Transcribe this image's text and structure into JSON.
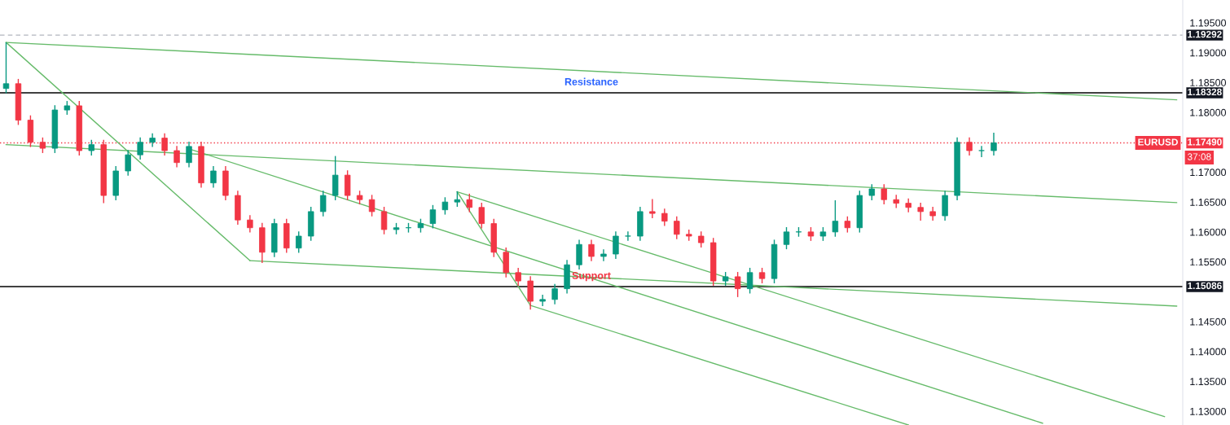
{
  "chart_data": {
    "type": "candlestick",
    "categories": [
      null,
      null,
      null,
      null,
      null,
      null,
      null,
      null,
      null,
      null,
      null,
      null,
      null,
      null,
      null,
      null,
      null,
      null,
      null,
      null,
      null,
      null,
      null,
      null,
      null,
      null,
      null,
      null,
      null,
      null,
      null,
      null,
      null,
      null,
      null,
      null,
      null,
      null,
      null,
      null,
      null,
      null,
      null,
      null,
      null,
      null,
      null,
      null,
      null,
      null,
      null,
      null,
      null,
      null,
      null,
      null,
      null,
      null,
      null,
      null,
      null,
      null,
      null,
      null,
      null,
      null,
      null,
      null,
      null,
      null,
      null,
      null,
      null,
      null,
      null,
      null,
      null,
      null,
      null,
      null,
      null,
      null,
      null,
      null,
      null,
      null,
      null,
      null,
      null,
      null,
      null,
      null,
      null,
      null,
      null,
      null,
      null
    ],
    "ohlc": [
      [
        1.184,
        1.1917,
        1.1832,
        1.1848
      ],
      [
        1.1848,
        1.1856,
        1.1779,
        1.1787
      ],
      [
        1.1787,
        1.1795,
        1.1742,
        1.175
      ],
      [
        1.175,
        1.1758,
        1.1732,
        1.174
      ],
      [
        1.174,
        1.1812,
        1.1732,
        1.1804
      ],
      [
        1.1804,
        1.1819,
        1.1796,
        1.1811
      ],
      [
        1.1811,
        1.1819,
        1.1728,
        1.1736
      ],
      [
        1.1736,
        1.1754,
        1.1728,
        1.1746
      ],
      [
        1.1746,
        1.1754,
        1.1648,
        1.1661
      ],
      [
        1.1661,
        1.171,
        1.1653,
        1.1702
      ],
      [
        1.1702,
        1.1737,
        1.1694,
        1.1729
      ],
      [
        1.1729,
        1.1758,
        1.1721,
        1.175
      ],
      [
        1.175,
        1.1765,
        1.1742,
        1.1757
      ],
      [
        1.1757,
        1.1765,
        1.1728,
        1.1736
      ],
      [
        1.1736,
        1.1744,
        1.1708,
        1.1716
      ],
      [
        1.1716,
        1.1751,
        1.1708,
        1.1743
      ],
      [
        1.1743,
        1.1751,
        1.1674,
        1.1682
      ],
      [
        1.1682,
        1.171,
        1.1674,
        1.1702
      ],
      [
        1.1702,
        1.171,
        1.1653,
        1.1661
      ],
      [
        1.1661,
        1.1669,
        1.1612,
        1.162
      ],
      [
        1.162,
        1.1628,
        1.1599,
        1.1607
      ],
      [
        1.1607,
        1.1615,
        1.1548,
        1.1566
      ],
      [
        1.1566,
        1.1622,
        1.1558,
        1.1614
      ],
      [
        1.1614,
        1.1622,
        1.1565,
        1.1573
      ],
      [
        1.1573,
        1.1601,
        1.1565,
        1.1593
      ],
      [
        1.1593,
        1.1642,
        1.1585,
        1.1634
      ],
      [
        1.1634,
        1.1669,
        1.1626,
        1.1661
      ],
      [
        1.1661,
        1.1727,
        1.1653,
        1.1695
      ],
      [
        1.1695,
        1.1703,
        1.1653,
        1.1661
      ],
      [
        1.1661,
        1.1669,
        1.1646,
        1.1654
      ],
      [
        1.1654,
        1.1662,
        1.1626,
        1.1634
      ],
      [
        1.1634,
        1.1642,
        1.1596,
        1.1604
      ],
      [
        1.1604,
        1.1615,
        1.1596,
        1.1607
      ],
      [
        1.1607,
        1.1615,
        1.1599,
        1.1607
      ],
      [
        1.1607,
        1.1622,
        1.1599,
        1.1614
      ],
      [
        1.1614,
        1.1645,
        1.1606,
        1.1637
      ],
      [
        1.1637,
        1.1658,
        1.1629,
        1.165
      ],
      [
        1.165,
        1.1668,
        1.1642,
        1.1654
      ],
      [
        1.1654,
        1.1664,
        1.1633,
        1.1641
      ],
      [
        1.1641,
        1.1649,
        1.1606,
        1.1614
      ],
      [
        1.1614,
        1.1622,
        1.1558,
        1.1566
      ],
      [
        1.1566,
        1.1574,
        1.1524,
        1.1532
      ],
      [
        1.1532,
        1.154,
        1.151,
        1.1518
      ],
      [
        1.1518,
        1.1526,
        1.147,
        1.1484
      ],
      [
        1.1484,
        1.1495,
        1.1476,
        1.1487
      ],
      [
        1.1487,
        1.1513,
        1.1479,
        1.1505
      ],
      [
        1.1505,
        1.1553,
        1.1497,
        1.1545
      ],
      [
        1.1545,
        1.1587,
        1.1537,
        1.1579
      ],
      [
        1.1579,
        1.1587,
        1.1551,
        1.1559
      ],
      [
        1.1559,
        1.1571,
        1.1551,
        1.1563
      ],
      [
        1.1563,
        1.1601,
        1.1555,
        1.1593
      ],
      [
        1.1593,
        1.1601,
        1.1585,
        1.1593
      ],
      [
        1.1593,
        1.1642,
        1.1585,
        1.1634
      ],
      [
        1.1634,
        1.1655,
        1.1623,
        1.1631
      ],
      [
        1.1631,
        1.1639,
        1.161,
        1.1618
      ],
      [
        1.1618,
        1.1626,
        1.1588,
        1.1596
      ],
      [
        1.1596,
        1.1604,
        1.1585,
        1.1593
      ],
      [
        1.1593,
        1.1601,
        1.1574,
        1.1582
      ],
      [
        1.1582,
        1.159,
        1.151,
        1.1518
      ],
      [
        1.1518,
        1.1533,
        1.151,
        1.1525
      ],
      [
        1.1525,
        1.1533,
        1.1491,
        1.1505
      ],
      [
        1.1505,
        1.154,
        1.1497,
        1.1532
      ],
      [
        1.1532,
        1.154,
        1.1514,
        1.1522
      ],
      [
        1.1522,
        1.1587,
        1.1514,
        1.1579
      ],
      [
        1.1579,
        1.1608,
        1.1571,
        1.16
      ],
      [
        1.16,
        1.1608,
        1.1592,
        1.16
      ],
      [
        1.16,
        1.1608,
        1.1585,
        1.1593
      ],
      [
        1.1593,
        1.1608,
        1.1585,
        1.16
      ],
      [
        1.16,
        1.1653,
        1.1592,
        1.1618
      ],
      [
        1.1618,
        1.1626,
        1.1599,
        1.1607
      ],
      [
        1.1607,
        1.1669,
        1.1599,
        1.1661
      ],
      [
        1.1661,
        1.168,
        1.1653,
        1.1672
      ],
      [
        1.1672,
        1.168,
        1.1646,
        1.1654
      ],
      [
        1.1654,
        1.1662,
        1.164,
        1.1648
      ],
      [
        1.1648,
        1.1656,
        1.1633,
        1.1641
      ],
      [
        1.1641,
        1.1649,
        1.1619,
        1.1634
      ],
      [
        1.1634,
        1.1642,
        1.1619,
        1.1627
      ],
      [
        1.1627,
        1.1669,
        1.1619,
        1.1661
      ],
      [
        1.1661,
        1.1758,
        1.1653,
        1.175
      ],
      [
        1.175,
        1.1758,
        1.1728,
        1.1736
      ],
      [
        1.1736,
        1.1744,
        1.1725,
        1.1736
      ],
      [
        1.1736,
        1.1766,
        1.1728,
        1.1749
      ],
      null,
      null,
      null,
      null,
      null,
      null,
      null,
      null,
      null,
      null,
      null,
      null,
      null,
      null,
      null
    ],
    "colors": [
      "#089981",
      "#f23645",
      "#f23645",
      "#f23645",
      "#089981",
      "#089981",
      "#f23645",
      "#089981",
      "#f23645",
      "#089981",
      "#089981",
      "#089981",
      "#089981",
      "#f23645",
      "#f23645",
      "#089981",
      "#f23645",
      "#089981",
      "#f23645",
      "#f23645",
      "#f23645",
      "#f23645",
      "#089981",
      "#f23645",
      "#089981",
      "#089981",
      "#089981",
      "#089981",
      "#f23645",
      "#f23645",
      "#f23645",
      "#f23645",
      "#089981",
      "#089981",
      "#089981",
      "#089981",
      "#089981",
      "#089981",
      "#f23645",
      "#f23645",
      "#f23645",
      "#f23645",
      "#f23645",
      "#f23645",
      "#089981",
      "#089981",
      "#089981",
      "#089981",
      "#f23645",
      "#089981",
      "#089981",
      "#089981",
      "#089981",
      "#f23645",
      "#f23645",
      "#f23645",
      "#f23645",
      "#f23645",
      "#f23645",
      "#089981",
      "#f23645",
      "#089981",
      "#f23645",
      "#089981",
      "#089981",
      "#089981",
      "#f23645",
      "#089981",
      "#089981",
      "#f23645",
      "#089981",
      "#089981",
      "#f23645",
      "#f23645",
      "#f23645",
      "#f23645",
      "#f23645",
      "#089981",
      "#089981",
      "#f23645",
      "#089981",
      "#089981",
      null,
      null,
      null,
      null,
      null,
      null,
      null,
      null,
      null,
      null,
      null,
      null,
      null,
      null,
      null
    ],
    "series": [
      {
        "type": "line",
        "color": "#66bb6a",
        "values": [
          1.1917,
          null,
          null,
          null,
          null,
          null,
          null,
          null,
          null,
          null,
          null,
          null,
          null,
          null,
          null,
          null,
          null,
          null,
          null,
          null,
          null,
          null,
          null,
          null,
          null,
          null,
          null,
          null,
          null,
          null,
          null,
          null,
          null,
          null,
          null,
          null,
          null,
          null,
          null,
          null,
          null,
          null,
          null,
          null,
          null,
          null,
          null,
          null,
          null,
          null,
          null,
          null,
          null,
          null,
          null,
          null,
          null,
          null,
          null,
          null,
          null,
          null,
          null,
          null,
          null,
          null,
          null,
          null,
          null,
          null,
          null,
          null,
          null,
          null,
          null,
          null,
          null,
          null,
          null,
          null,
          null,
          null,
          null,
          null,
          null,
          null,
          null,
          null,
          null,
          null,
          null,
          null,
          null,
          null,
          null,
          null,
          1.1821
        ]
      },
      {
        "type": "line",
        "color": "#66bb6a",
        "values": [
          1.1917,
          null,
          null,
          null,
          null,
          null,
          null,
          null,
          null,
          null,
          null,
          null,
          null,
          null,
          null,
          null,
          null,
          null,
          null,
          null,
          1.1552,
          null,
          null,
          null,
          null,
          null,
          null,
          null,
          null,
          null,
          null,
          null,
          null,
          null,
          null,
          null,
          null,
          null,
          null,
          null,
          null,
          null,
          null,
          null,
          null,
          null,
          null,
          null,
          null,
          null,
          null,
          null,
          null,
          null,
          null,
          null,
          null,
          null,
          null,
          null,
          null,
          null,
          null,
          null,
          null,
          null,
          null,
          null,
          null,
          null,
          null,
          null,
          null,
          null,
          null,
          null,
          null,
          null,
          null,
          null,
          null,
          null,
          null,
          null,
          null,
          null,
          null,
          null,
          null,
          null,
          null,
          null,
          null,
          null,
          null,
          null,
          null
        ]
      },
      {
        "type": "line",
        "color": "#66bb6a",
        "values": [
          null,
          null,
          null,
          null,
          null,
          null,
          null,
          null,
          null,
          null,
          null,
          null,
          null,
          null,
          null,
          null,
          null,
          null,
          null,
          null,
          1.1552,
          null,
          null,
          null,
          null,
          null,
          null,
          null,
          null,
          null,
          null,
          null,
          null,
          null,
          null,
          null,
          null,
          null,
          null,
          null,
          null,
          null,
          null,
          null,
          null,
          null,
          null,
          null,
          null,
          null,
          null,
          null,
          null,
          null,
          null,
          null,
          null,
          null,
          null,
          null,
          null,
          null,
          null,
          null,
          null,
          null,
          null,
          null,
          null,
          null,
          null,
          null,
          null,
          null,
          null,
          null,
          null,
          null,
          null,
          null,
          null,
          null,
          null,
          null,
          null,
          null,
          null,
          null,
          null,
          null,
          null,
          null,
          null,
          null,
          null,
          null,
          1.1476
        ]
      },
      {
        "type": "line",
        "color": "#66bb6a",
        "values": [
          1.1746,
          null,
          null,
          null,
          null,
          null,
          null,
          null,
          null,
          null,
          null,
          null,
          null,
          null,
          null,
          null,
          null,
          null,
          null,
          null,
          null,
          null,
          null,
          null,
          null,
          null,
          null,
          null,
          null,
          null,
          null,
          null,
          null,
          null,
          null,
          null,
          null,
          null,
          null,
          null,
          null,
          null,
          null,
          null,
          null,
          null,
          null,
          null,
          null,
          null,
          null,
          null,
          null,
          null,
          null,
          null,
          null,
          null,
          null,
          null,
          null,
          null,
          null,
          null,
          null,
          null,
          null,
          null,
          null,
          null,
          null,
          null,
          null,
          null,
          null,
          null,
          null,
          null,
          null,
          null,
          null,
          null,
          null,
          null,
          null,
          null,
          null,
          null,
          null,
          null,
          null,
          null,
          null,
          null,
          null,
          null,
          1.1649
        ]
      },
      {
        "type": "line",
        "color": "#66bb6a",
        "values": [
          null,
          null,
          null,
          null,
          null,
          null,
          null,
          null,
          null,
          null,
          null,
          null,
          null,
          null,
          null,
          1.1739,
          null,
          null,
          null,
          null,
          null,
          null,
          null,
          null,
          null,
          null,
          null,
          null,
          null,
          null,
          null,
          null,
          null,
          null,
          null,
          null,
          null,
          null,
          null,
          null,
          null,
          null,
          null,
          null,
          null,
          null,
          null,
          null,
          null,
          null,
          null,
          null,
          null,
          null,
          null,
          null,
          null,
          null,
          null,
          null,
          null,
          null,
          null,
          null,
          null,
          null,
          null,
          null,
          null,
          null,
          null,
          null,
          null,
          null,
          null,
          null,
          null,
          null,
          null,
          null,
          null,
          null,
          null,
          null,
          null,
          1.128,
          null,
          null,
          null,
          null,
          null,
          null,
          null,
          null,
          null,
          null,
          null
        ]
      },
      {
        "type": "line",
        "color": "#66bb6a",
        "values": [
          null,
          null,
          null,
          null,
          null,
          null,
          null,
          null,
          null,
          null,
          null,
          null,
          null,
          null,
          null,
          null,
          null,
          null,
          null,
          null,
          null,
          null,
          null,
          null,
          null,
          null,
          null,
          null,
          null,
          null,
          null,
          null,
          null,
          null,
          null,
          null,
          null,
          1.1667,
          null,
          null,
          null,
          null,
          null,
          null,
          null,
          null,
          null,
          null,
          null,
          null,
          null,
          null,
          null,
          null,
          null,
          null,
          null,
          null,
          null,
          null,
          null,
          null,
          null,
          null,
          null,
          null,
          null,
          null,
          null,
          null,
          null,
          null,
          null,
          null,
          null,
          null,
          null,
          null,
          null,
          null,
          null,
          null,
          null,
          null,
          null,
          null,
          null,
          null,
          null,
          null,
          null,
          null,
          null,
          null,
          null,
          1.1291,
          null
        ]
      },
      {
        "type": "line",
        "color": "#66bb6a",
        "values": [
          null,
          null,
          null,
          null,
          null,
          null,
          null,
          null,
          null,
          null,
          null,
          null,
          null,
          null,
          null,
          null,
          null,
          null,
          null,
          null,
          null,
          null,
          null,
          null,
          null,
          null,
          null,
          null,
          null,
          null,
          null,
          null,
          null,
          null,
          null,
          null,
          null,
          1.1667,
          null,
          null,
          null,
          null,
          null,
          1.1477,
          null,
          null,
          null,
          null,
          null,
          null,
          null,
          null,
          null,
          null,
          null,
          null,
          null,
          null,
          null,
          null,
          null,
          null,
          null,
          null,
          null,
          null,
          null,
          null,
          null,
          null,
          null,
          null,
          null,
          null,
          null,
          null,
          null,
          null,
          null,
          null,
          null,
          null,
          null,
          null,
          null,
          null,
          null,
          null,
          null,
          null,
          null,
          null,
          null,
          null,
          null,
          null,
          null
        ]
      },
      {
        "type": "line",
        "color": "#66bb6a",
        "values": [
          null,
          null,
          null,
          null,
          null,
          null,
          null,
          null,
          null,
          null,
          null,
          null,
          null,
          null,
          null,
          null,
          null,
          null,
          null,
          null,
          null,
          null,
          null,
          null,
          null,
          null,
          null,
          null,
          null,
          null,
          null,
          null,
          null,
          null,
          null,
          null,
          null,
          null,
          null,
          null,
          null,
          null,
          null,
          1.1477,
          null,
          null,
          null,
          null,
          null,
          null,
          null,
          null,
          null,
          null,
          null,
          null,
          null,
          null,
          null,
          null,
          null,
          null,
          null,
          null,
          null,
          null,
          null,
          null,
          null,
          null,
          null,
          null,
          null,
          null,
          1.1277,
          null,
          null,
          null,
          null,
          null,
          null,
          null,
          null,
          null,
          null,
          null,
          null,
          null,
          null,
          null,
          null,
          null,
          null,
          null,
          null,
          null,
          null
        ]
      }
    ],
    "ylim": [
      1.1277,
      1.1988
    ],
    "yticks": [
      {
        "value": 1.13,
        "label": "1.13000"
      },
      {
        "value": 1.135,
        "label": "1.13500"
      },
      {
        "value": 1.14,
        "label": "1.14000"
      },
      {
        "value": 1.145,
        "label": "1.14500"
      },
      {
        "value": 1.155,
        "label": "1.15500"
      },
      {
        "value": 1.16,
        "label": "1.16000"
      },
      {
        "value": 1.165,
        "label": "1.16500"
      },
      {
        "value": 1.17,
        "label": "1.17000"
      },
      {
        "value": 1.18,
        "label": "1.18000"
      },
      {
        "value": 1.185,
        "label": "1.18500"
      },
      {
        "value": 1.19,
        "label": "1.19000"
      },
      {
        "value": 1.195,
        "label": "1.19500"
      }
    ],
    "tick_labels": "y",
    "grid": false,
    "legend": false,
    "ref_lines": [
      {
        "axis": "y",
        "value": 1.19292,
        "label": "1.19292",
        "color": "#b2b5be",
        "line_style": "dashed"
      },
      {
        "axis": "y",
        "value": 1.18328,
        "label": "1.18328",
        "color": "#000000",
        "line_style": "solid"
      },
      {
        "axis": "y",
        "value": 1.1749,
        "label": "1.17490",
        "color": "#f23645",
        "line_style": "dotted"
      },
      {
        "axis": "y",
        "value": 1.15086,
        "label": "1.15086",
        "color": "#000000",
        "line_style": "solid"
      }
    ],
    "annotations": [
      "Resistance",
      "Support",
      "EURUSD",
      "37:08"
    ]
  }
}
